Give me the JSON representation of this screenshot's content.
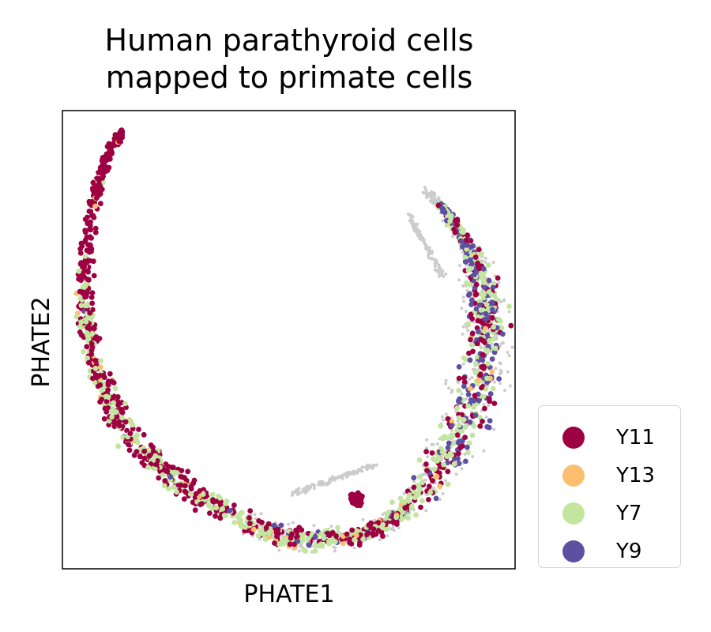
{
  "chart_data": {
    "type": "scatter",
    "title_lines": [
      "Human parathyroid cells",
      "mapped to primate cells"
    ],
    "xlabel": "PHATE1",
    "ylabel": "PHATE2",
    "xticks": false,
    "yticks": false,
    "grid": false,
    "legend_position": "outside-right-bottom",
    "background_color": "#cccccc",
    "series": [
      {
        "name": "Y11",
        "color": "#9e0142"
      },
      {
        "name": "Y13",
        "color": "#fdbf6f"
      },
      {
        "name": "Y7",
        "color": "#c2e5a0"
      },
      {
        "name": "Y9",
        "color": "#5e4fa2"
      }
    ]
  }
}
